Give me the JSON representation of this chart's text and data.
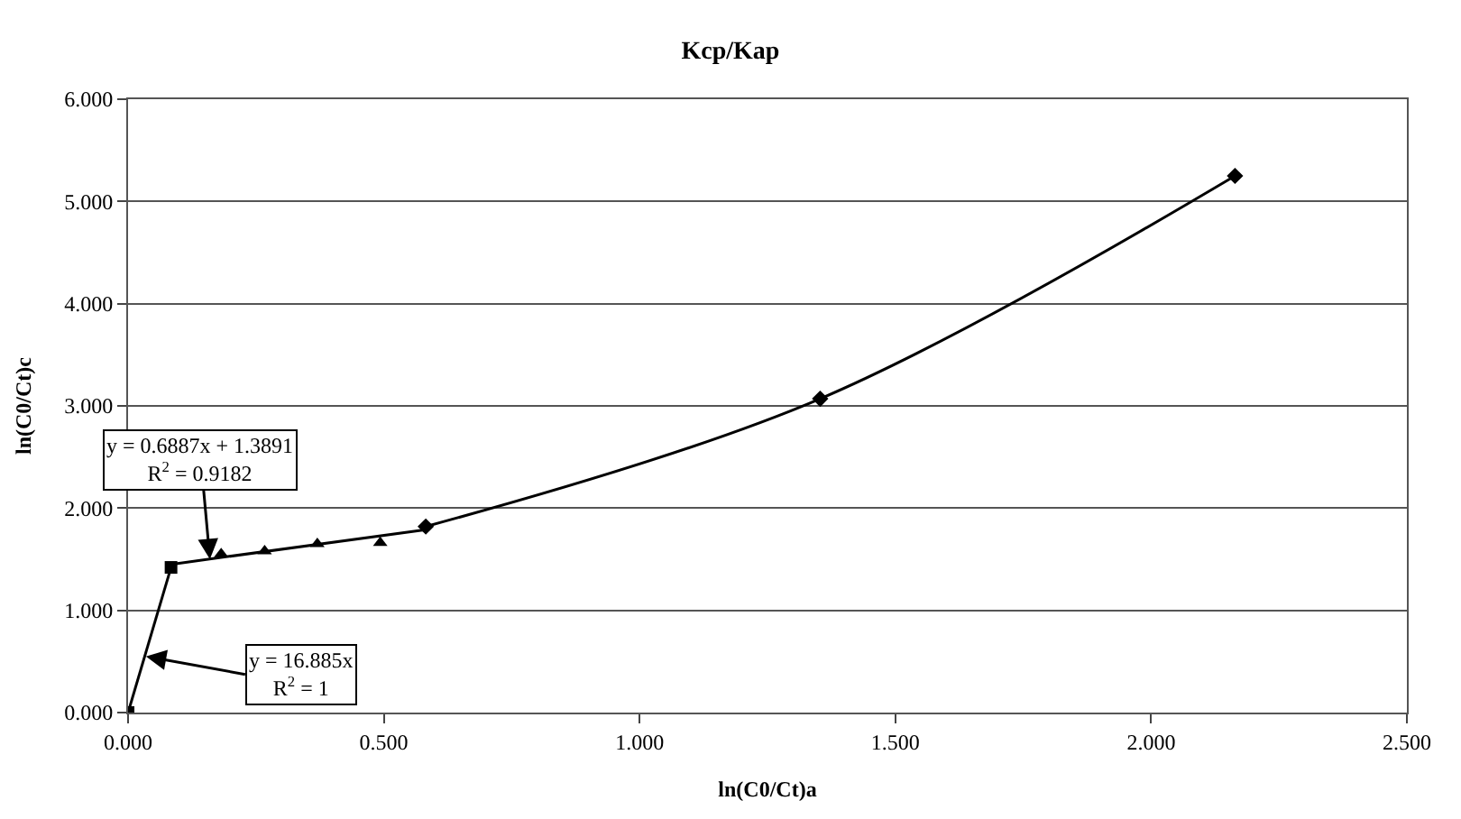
{
  "chart_data": {
    "type": "line",
    "title": "Kcp/Kap",
    "xlabel": "ln(C0/Ct)a",
    "ylabel": "ln(C0/Ct)c",
    "series": [
      {
        "color": "#000000",
        "marker": "square",
        "x": [
          0,
          0.084
        ],
        "values": [
          0,
          1.42
        ]
      },
      {
        "color": "#000000",
        "marker": "none",
        "x": [
          0.084,
          0.582
        ],
        "values": [
          1.45,
          1.79
        ]
      },
      {
        "type": "scatter",
        "color": "#000000",
        "marker": "triangle",
        "x": [
          0.182,
          0.267,
          0.37,
          0.493
        ],
        "values": [
          1.55,
          1.58,
          1.65,
          1.66
        ]
      },
      {
        "color": "#000000",
        "marker": "diamond",
        "x": [
          0.582,
          1.353,
          2.164
        ],
        "values": [
          1.82,
          3.07,
          5.25
        ]
      }
    ],
    "xlim": [
      0,
      2.5
    ],
    "ylim": [
      0,
      6
    ],
    "xticks": [
      {
        "value": 0,
        "label": "0.000"
      },
      {
        "value": 0.5,
        "label": "0.500"
      },
      {
        "value": 1,
        "label": "1.000"
      },
      {
        "value": 1.5,
        "label": "1.500"
      },
      {
        "value": 2,
        "label": "2.000"
      },
      {
        "value": 2.5,
        "label": "2.500"
      }
    ],
    "yticks": [
      {
        "value": 0,
        "label": "0.000"
      },
      {
        "value": 1,
        "label": "1.000"
      },
      {
        "value": 2,
        "label": "2.000"
      },
      {
        "value": 3,
        "label": "3.000"
      },
      {
        "value": 4,
        "label": "4.000"
      },
      {
        "value": 5,
        "label": "5.000"
      },
      {
        "value": 6,
        "label": "6.000"
      }
    ],
    "grid": "y",
    "annotations": [
      {
        "text": "y = 0.6887x + 1.3891\nR$^{2}$ = 0.9182",
        "x": 0.16,
        "y": 1.5
      },
      {
        "text": "y = 16.885x\nR$^{2}$ = 1",
        "x": 0.035,
        "y": 0.55
      }
    ]
  }
}
